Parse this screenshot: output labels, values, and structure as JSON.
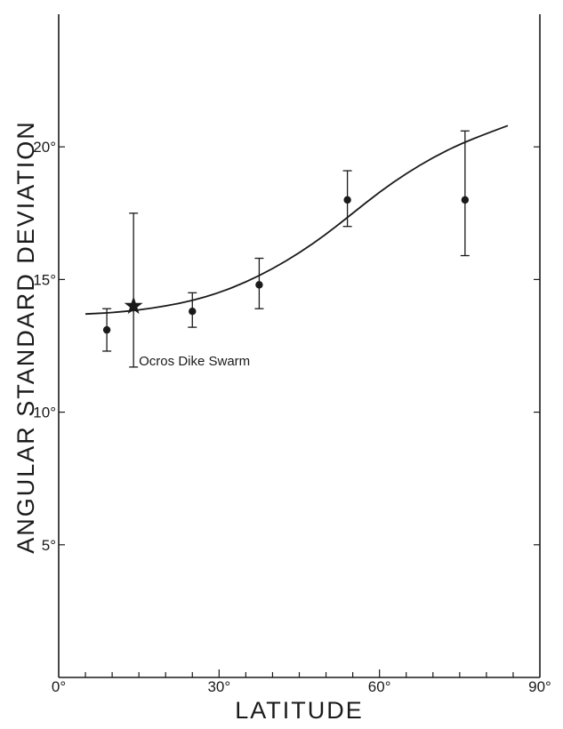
{
  "chart_data": {
    "type": "scatter",
    "title": "",
    "xlabel": "LATITUDE",
    "ylabel": "ANGULAR STANDARD DEVIATION",
    "xlim": [
      0,
      90
    ],
    "ylim": [
      0,
      25
    ],
    "x_tick_labels": [
      "0°",
      "30°",
      "60°",
      "90°"
    ],
    "y_tick_labels": [
      "5°",
      "10°",
      "15°",
      "20°"
    ],
    "grid": false,
    "series": [
      {
        "marker": "circle",
        "points": [
          {
            "x": 9,
            "y": 13.1,
            "err_low": 12.3,
            "err_high": 13.9
          },
          {
            "x": 25,
            "y": 13.8,
            "err_low": 13.2,
            "err_high": 14.5
          },
          {
            "x": 37.5,
            "y": 14.8,
            "err_low": 13.9,
            "err_high": 15.8
          },
          {
            "x": 54,
            "y": 18.0,
            "err_low": 17.0,
            "err_high": 19.1
          },
          {
            "x": 76,
            "y": 18.0,
            "err_low": 15.9,
            "err_high": 20.6
          }
        ]
      },
      {
        "marker": "star",
        "points": [
          {
            "x": 14,
            "y": 14.0,
            "err_low": 11.7,
            "err_high": 17.5
          }
        ]
      },
      {
        "marker": "none",
        "line": "curve",
        "points": [
          {
            "x": 5,
            "y": 13.7
          },
          {
            "x": 10,
            "y": 13.75
          },
          {
            "x": 15,
            "y": 13.85
          },
          {
            "x": 20,
            "y": 14.0
          },
          {
            "x": 25,
            "y": 14.2
          },
          {
            "x": 30,
            "y": 14.5
          },
          {
            "x": 35,
            "y": 14.9
          },
          {
            "x": 40,
            "y": 15.4
          },
          {
            "x": 45,
            "y": 16.0
          },
          {
            "x": 50,
            "y": 16.7
          },
          {
            "x": 55,
            "y": 17.5
          },
          {
            "x": 60,
            "y": 18.3
          },
          {
            "x": 65,
            "y": 19.0
          },
          {
            "x": 70,
            "y": 19.6
          },
          {
            "x": 75,
            "y": 20.1
          },
          {
            "x": 80,
            "y": 20.5
          },
          {
            "x": 84,
            "y": 20.8
          }
        ]
      }
    ],
    "annotations": [
      {
        "text": "Ocros Dike Swarm",
        "x": 14,
        "y": 11.7
      }
    ]
  }
}
